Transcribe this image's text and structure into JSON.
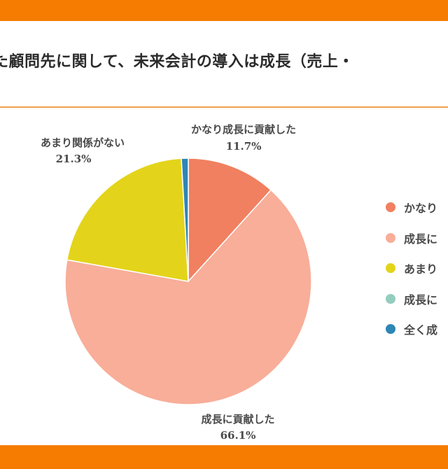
{
  "title": "た顧問先に関して、未来会計の導入は成長（売上・",
  "colors": {
    "band": "#f57c00",
    "divider": "#f0a04b",
    "text": "#4a4a4a"
  },
  "chart_data": {
    "type": "pie",
    "start_angle_deg": 0,
    "direction": "clockwise",
    "slices": [
      {
        "label": "かなり成長に貢献した",
        "value": 11.7,
        "pct_text": "11.7%",
        "color": "#f08060",
        "legend_text": "かなり"
      },
      {
        "label": "成長に貢献した",
        "value": 66.1,
        "pct_text": "66.1%",
        "color": "#f8ae99",
        "legend_text": "成長に"
      },
      {
        "label": "あまり関係がない",
        "value": 21.3,
        "pct_text": "21.3%",
        "color": "#e3d41b",
        "legend_text": "あまり"
      },
      {
        "label": "",
        "value": 0.0,
        "pct_text": "",
        "color": "#94cdbf",
        "legend_text": "成長に"
      },
      {
        "label": "",
        "value": 0.9,
        "pct_text": "",
        "color": "#2e86b5",
        "legend_text": "全く成"
      }
    ]
  }
}
